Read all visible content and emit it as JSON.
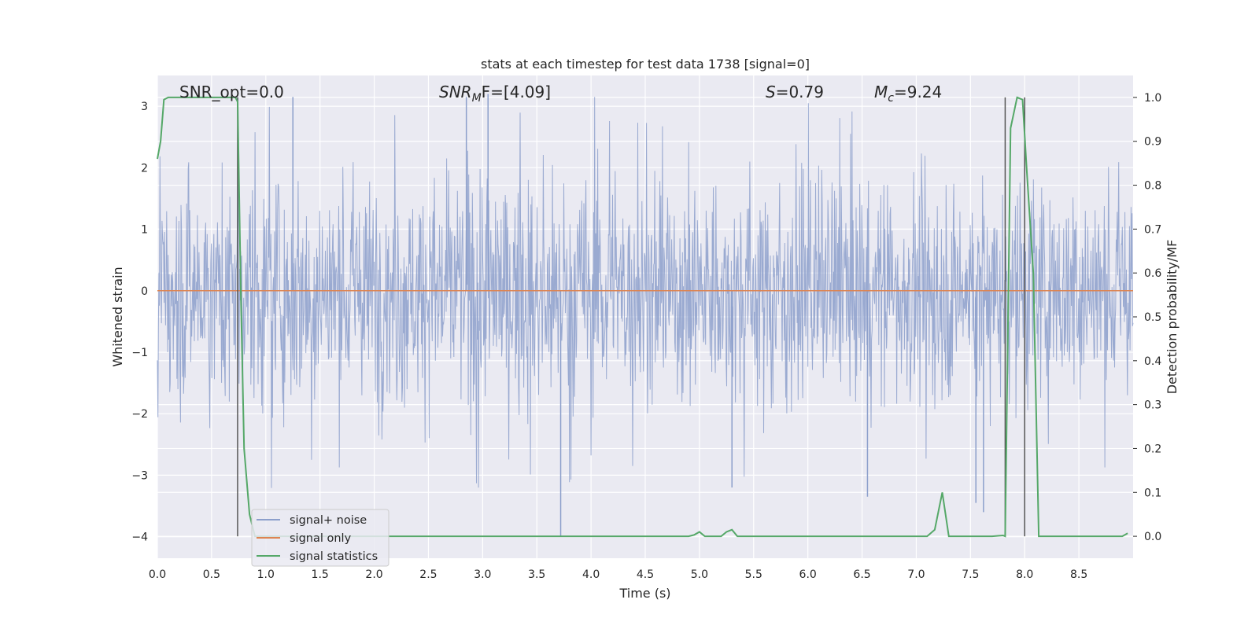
{
  "chart_data": {
    "type": "line",
    "title": "stats at each timestep for test data 1738 [signal=0]",
    "xlabel": "Time (s)",
    "ylabel_left": "Whitened strain",
    "ylabel_right": "Detection probability/MF",
    "xlim": [
      0.0,
      9.0
    ],
    "ylim_left": [
      -4.35,
      3.5
    ],
    "ylim_right": [
      -0.05,
      1.05
    ],
    "x_ticks": [
      "0.0",
      "0.5",
      "1.0",
      "1.5",
      "2.0",
      "2.5",
      "3.0",
      "3.5",
      "4.0",
      "4.5",
      "5.0",
      "5.5",
      "6.0",
      "6.5",
      "7.0",
      "7.5",
      "8.0",
      "8.5"
    ],
    "y_left_ticks": [
      "3",
      "2",
      "1",
      "0",
      "−1",
      "−2",
      "−3",
      "−4"
    ],
    "y_right_ticks": [
      "1.0",
      "0.9",
      "0.8",
      "0.7",
      "0.6",
      "0.5",
      "0.4",
      "0.3",
      "0.2",
      "0.1",
      "0.0"
    ],
    "grid": true,
    "legend_position": "lower-left",
    "series": [
      {
        "name": "signal+ noise",
        "color": "#8c9fcb",
        "description_of_values": "dense noise roughly between -2 and 2, occasional spikes to about +3.2 and -4.0",
        "spike_highs": [
          3.15,
          3.1,
          3.2
        ],
        "spike_lows": [
          -4.0,
          -3.6,
          -3.4,
          -3.3
        ]
      },
      {
        "name": "signal only",
        "color": "#dd8452",
        "values_constant": 0.0
      },
      {
        "name": "signal statistics",
        "color": "#55a868",
        "x": [
          0.0,
          0.03,
          0.06,
          0.1,
          0.2,
          0.4,
          0.6,
          0.72,
          0.74,
          0.77,
          0.8,
          0.85,
          0.9,
          1.0,
          2.0,
          2.8,
          3.0,
          4.0,
          4.9,
          4.95,
          5.0,
          5.05,
          5.2,
          5.25,
          5.3,
          5.35,
          5.4,
          6.0,
          7.0,
          7.1,
          7.17,
          7.24,
          7.3,
          7.35,
          7.7,
          7.8,
          7.82,
          7.87,
          7.93,
          7.98,
          8.02,
          8.08,
          8.13,
          8.2,
          8.9,
          8.95
        ],
        "values": [
          0.86,
          0.9,
          0.995,
          1.0,
          1.0,
          1.0,
          1.0,
          1.0,
          0.99,
          0.55,
          0.2,
          0.05,
          0.0,
          0.0,
          0.0,
          0.0,
          0.0,
          0.0,
          0.0,
          0.003,
          0.01,
          0.0,
          0.0,
          0.01,
          0.015,
          0.0,
          0.0,
          0.0,
          0.0,
          0.0,
          0.015,
          0.1,
          0.0,
          0.0,
          0.0,
          0.002,
          0.0,
          0.93,
          1.0,
          0.995,
          0.83,
          0.6,
          0.0,
          0.0,
          0.0,
          0.007
        ]
      },
      {
        "name": "vertical markers",
        "color": "#555555",
        "x": [
          0.74,
          7.82,
          8.0
        ]
      }
    ],
    "annotations": [
      {
        "id": "snr_opt",
        "text": "SNR_opt=0.0",
        "x": 0.2
      },
      {
        "id": "snr_mf",
        "text_main": "SNR",
        "text_sub": "M",
        "text_tail": "F=[4.09]",
        "x": 2.6
      },
      {
        "id": "s_val",
        "text_italic": "S",
        "text_tail": "=0.79",
        "x": 5.5
      },
      {
        "id": "mc_val",
        "text_italic": "M",
        "text_sub": "c",
        "text_tail": "=9.24",
        "x": 6.55
      }
    ]
  }
}
